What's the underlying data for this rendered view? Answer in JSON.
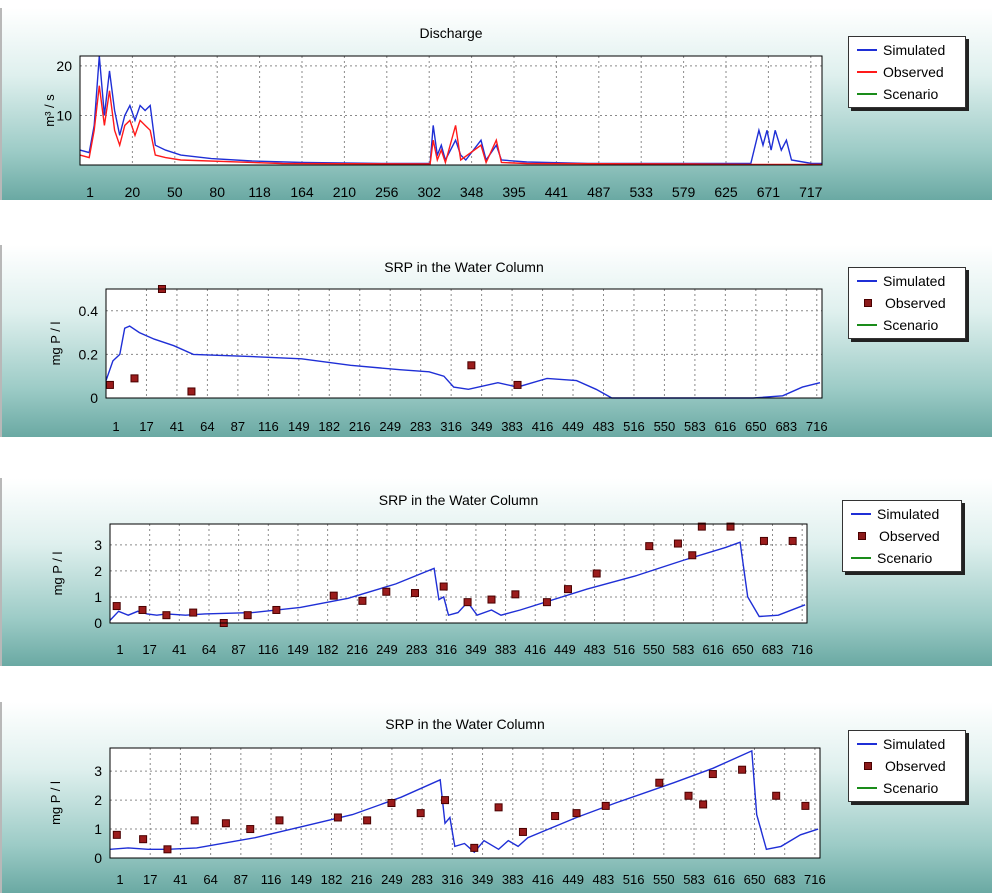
{
  "colors": {
    "simulated": "#1f2fd6",
    "observed_line": "#ff1a1a",
    "observed_marker": "#9b1c1c",
    "scenario": "#1a8c1a",
    "grid": "#8a8a8a"
  },
  "legend_labels": [
    "Simulated",
    "Observed",
    "Scenario"
  ],
  "chart_data": [
    {
      "type": "line",
      "title": "Discharge",
      "ylabel": "m³ / s",
      "xlabel": "",
      "ylim": [
        0,
        22
      ],
      "xlim": [
        1,
        730
      ],
      "yticks": [
        10,
        20
      ],
      "xtick_labels": [
        "1",
        "20",
        "50",
        "80",
        "118",
        "164",
        "210",
        "256",
        "302",
        "348",
        "395",
        "441",
        "487",
        "533",
        "579",
        "625",
        "671",
        "717"
      ],
      "legend": "right",
      "grid": true,
      "observed_style": "line",
      "series": [
        {
          "name": "Simulated",
          "points": [
            [
              1,
              3
            ],
            [
              10,
              2.5
            ],
            [
              15,
              8
            ],
            [
              20,
              22
            ],
            [
              25,
              10
            ],
            [
              30,
              19
            ],
            [
              35,
              11
            ],
            [
              40,
              6
            ],
            [
              45,
              10
            ],
            [
              50,
              12
            ],
            [
              55,
              9
            ],
            [
              60,
              12
            ],
            [
              65,
              11
            ],
            [
              70,
              12
            ],
            [
              75,
              4
            ],
            [
              85,
              3
            ],
            [
              100,
              2
            ],
            [
              130,
              1.3
            ],
            [
              170,
              0.8
            ],
            [
              220,
              0.5
            ],
            [
              300,
              0.3
            ],
            [
              345,
              0.3
            ],
            [
              348,
              8
            ],
            [
              352,
              2
            ],
            [
              356,
              4
            ],
            [
              360,
              1
            ],
            [
              370,
              5
            ],
            [
              375,
              2
            ],
            [
              380,
              1
            ],
            [
              395,
              5
            ],
            [
              400,
              1
            ],
            [
              410,
              4
            ],
            [
              415,
              1
            ],
            [
              440,
              0.6
            ],
            [
              500,
              0.3
            ],
            [
              660,
              0.3
            ],
            [
              668,
              7
            ],
            [
              672,
              4
            ],
            [
              676,
              7
            ],
            [
              680,
              3
            ],
            [
              684,
              7
            ],
            [
              690,
              3
            ],
            [
              695,
              5
            ],
            [
              700,
              1
            ],
            [
              720,
              0.3
            ],
            [
              730,
              0.3
            ]
          ]
        },
        {
          "name": "Observed",
          "points": [
            [
              1,
              2
            ],
            [
              10,
              1.5
            ],
            [
              15,
              7
            ],
            [
              20,
              16
            ],
            [
              25,
              8
            ],
            [
              30,
              15
            ],
            [
              35,
              7
            ],
            [
              40,
              4
            ],
            [
              45,
              8
            ],
            [
              50,
              9
            ],
            [
              55,
              6
            ],
            [
              60,
              9
            ],
            [
              65,
              8
            ],
            [
              70,
              7
            ],
            [
              75,
              2
            ],
            [
              85,
              1.5
            ],
            [
              100,
              1
            ],
            [
              200,
              0.3
            ],
            [
              345,
              0.2
            ],
            [
              348,
              5
            ],
            [
              352,
              1
            ],
            [
              356,
              3
            ],
            [
              360,
              0.5
            ],
            [
              370,
              8
            ],
            [
              375,
              1
            ],
            [
              395,
              4
            ],
            [
              400,
              0.5
            ],
            [
              410,
              5
            ],
            [
              415,
              0.5
            ],
            [
              440,
              0.3
            ],
            [
              600,
              0.2
            ],
            [
              660,
              0.1
            ],
            [
              730,
              0.1
            ]
          ]
        },
        {
          "name": "Scenario",
          "points": []
        }
      ]
    },
    {
      "type": "line",
      "title": "SRP in the Water Column",
      "ylabel": "mg P / l",
      "xlabel": "",
      "ylim": [
        0,
        0.5
      ],
      "xlim": [
        1,
        730
      ],
      "yticks": [
        0,
        0.2,
        0.4
      ],
      "xtick_labels": [
        "1",
        "17",
        "41",
        "64",
        "87",
        "116",
        "149",
        "182",
        "216",
        "249",
        "283",
        "316",
        "349",
        "383",
        "416",
        "449",
        "483",
        "516",
        "550",
        "583",
        "616",
        "650",
        "683",
        "716"
      ],
      "legend": "right",
      "grid": true,
      "observed_style": "markers",
      "series": [
        {
          "name": "Simulated",
          "points": [
            [
              1,
              0.08
            ],
            [
              8,
              0.17
            ],
            [
              15,
              0.2
            ],
            [
              20,
              0.32
            ],
            [
              25,
              0.33
            ],
            [
              35,
              0.3
            ],
            [
              50,
              0.27
            ],
            [
              70,
              0.24
            ],
            [
              90,
              0.2
            ],
            [
              150,
              0.19
            ],
            [
              200,
              0.18
            ],
            [
              250,
              0.15
            ],
            [
              300,
              0.13
            ],
            [
              330,
              0.12
            ],
            [
              345,
              0.1
            ],
            [
              355,
              0.05
            ],
            [
              370,
              0.04
            ],
            [
              400,
              0.07
            ],
            [
              420,
              0.05
            ],
            [
              450,
              0.09
            ],
            [
              480,
              0.08
            ],
            [
              500,
              0.04
            ],
            [
              516,
              0
            ],
            [
              660,
              0
            ],
            [
              690,
              0.01
            ],
            [
              710,
              0.05
            ],
            [
              728,
              0.07
            ]
          ]
        },
        {
          "name": "Observed",
          "points": [
            [
              5,
              0.06
            ],
            [
              30,
              0.09
            ],
            [
              58,
              0.5
            ],
            [
              88,
              0.03
            ],
            [
              373,
              0.15
            ],
            [
              420,
              0.06
            ]
          ]
        },
        {
          "name": "Scenario",
          "points": []
        }
      ]
    },
    {
      "type": "line",
      "title": "SRP in the Water Column",
      "ylabel": "mg P / l",
      "xlabel": "",
      "ylim": [
        0,
        3.8
      ],
      "xlim": [
        1,
        730
      ],
      "yticks": [
        0,
        1,
        2,
        3
      ],
      "xtick_labels": [
        "1",
        "17",
        "41",
        "64",
        "87",
        "116",
        "149",
        "182",
        "216",
        "249",
        "283",
        "316",
        "349",
        "383",
        "416",
        "449",
        "483",
        "516",
        "550",
        "583",
        "616",
        "650",
        "683",
        "716"
      ],
      "legend": "right",
      "grid": true,
      "observed_style": "markers",
      "series": [
        {
          "name": "Simulated",
          "points": [
            [
              1,
              0.1
            ],
            [
              10,
              0.45
            ],
            [
              20,
              0.3
            ],
            [
              30,
              0.45
            ],
            [
              40,
              0.35
            ],
            [
              50,
              0.3
            ],
            [
              60,
              0.35
            ],
            [
              80,
              0.3
            ],
            [
              100,
              0.35
            ],
            [
              150,
              0.4
            ],
            [
              200,
              0.6
            ],
            [
              250,
              0.95
            ],
            [
              300,
              1.5
            ],
            [
              340,
              2.1
            ],
            [
              345,
              0.9
            ],
            [
              350,
              1.0
            ],
            [
              355,
              0.3
            ],
            [
              365,
              0.4
            ],
            [
              375,
              0.8
            ],
            [
              385,
              0.3
            ],
            [
              400,
              0.5
            ],
            [
              410,
              0.3
            ],
            [
              420,
              0.4
            ],
            [
              430,
              0.5
            ],
            [
              500,
              1.3
            ],
            [
              550,
              1.8
            ],
            [
              600,
              2.4
            ],
            [
              645,
              2.9
            ],
            [
              660,
              3.1
            ],
            [
              668,
              1.0
            ],
            [
              680,
              0.25
            ],
            [
              700,
              0.3
            ],
            [
              728,
              0.7
            ]
          ]
        },
        {
          "name": "Observed",
          "points": [
            [
              8,
              0.65
            ],
            [
              35,
              0.5
            ],
            [
              60,
              0.3
            ],
            [
              88,
              0.4
            ],
            [
              120,
              0.0
            ],
            [
              145,
              0.3
            ],
            [
              175,
              0.5
            ],
            [
              235,
              1.05
            ],
            [
              265,
              0.85
            ],
            [
              290,
              1.2
            ],
            [
              320,
              1.15
            ],
            [
              350,
              1.4
            ],
            [
              375,
              0.8
            ],
            [
              400,
              0.9
            ],
            [
              425,
              1.1
            ],
            [
              458,
              0.8
            ],
            [
              480,
              1.3
            ],
            [
              510,
              1.9
            ],
            [
              565,
              2.95
            ],
            [
              595,
              3.05
            ],
            [
              610,
              2.6
            ],
            [
              620,
              3.7
            ],
            [
              650,
              3.7
            ],
            [
              685,
              3.15
            ],
            [
              715,
              3.15
            ]
          ]
        },
        {
          "name": "Scenario",
          "points": []
        }
      ]
    },
    {
      "type": "line",
      "title": "SRP in the Water Column",
      "ylabel": "mg P / l",
      "xlabel": "",
      "ylim": [
        0,
        3.8
      ],
      "xlim": [
        1,
        730
      ],
      "yticks": [
        0,
        1,
        2,
        3
      ],
      "xtick_labels": [
        "1",
        "17",
        "41",
        "64",
        "87",
        "116",
        "149",
        "182",
        "216",
        "249",
        "283",
        "316",
        "349",
        "383",
        "416",
        "449",
        "483",
        "516",
        "550",
        "583",
        "616",
        "650",
        "683",
        "716"
      ],
      "legend": "right",
      "grid": true,
      "observed_style": "markers",
      "series": [
        {
          "name": "Simulated",
          "points": [
            [
              1,
              0.3
            ],
            [
              20,
              0.35
            ],
            [
              40,
              0.3
            ],
            [
              60,
              0.3
            ],
            [
              90,
              0.35
            ],
            [
              150,
              0.7
            ],
            [
              200,
              1.1
            ],
            [
              250,
              1.5
            ],
            [
              300,
              2.1
            ],
            [
              340,
              2.7
            ],
            [
              345,
              1.2
            ],
            [
              350,
              1.4
            ],
            [
              355,
              0.4
            ],
            [
              365,
              0.5
            ],
            [
              375,
              0.2
            ],
            [
              385,
              0.6
            ],
            [
              400,
              0.3
            ],
            [
              410,
              0.6
            ],
            [
              420,
              0.4
            ],
            [
              430,
              0.7
            ],
            [
              480,
              1.4
            ],
            [
              520,
              1.9
            ],
            [
              580,
              2.6
            ],
            [
              620,
              3.1
            ],
            [
              660,
              3.7
            ],
            [
              665,
              1.5
            ],
            [
              675,
              0.3
            ],
            [
              690,
              0.4
            ],
            [
              710,
              0.8
            ],
            [
              728,
              1.0
            ]
          ]
        },
        {
          "name": "Observed",
          "points": [
            [
              8,
              0.8
            ],
            [
              35,
              0.65
            ],
            [
              60,
              0.3
            ],
            [
              88,
              1.3
            ],
            [
              120,
              1.2
            ],
            [
              145,
              1.0
            ],
            [
              175,
              1.3
            ],
            [
              235,
              1.4
            ],
            [
              265,
              1.3
            ],
            [
              290,
              1.9
            ],
            [
              320,
              1.55
            ],
            [
              345,
              2.0
            ],
            [
              375,
              0.35
            ],
            [
              400,
              1.75
            ],
            [
              425,
              0.9
            ],
            [
              458,
              1.45
            ],
            [
              480,
              1.55
            ],
            [
              510,
              1.8
            ],
            [
              565,
              2.6
            ],
            [
              595,
              2.15
            ],
            [
              610,
              1.85
            ],
            [
              620,
              2.9
            ],
            [
              650,
              3.05
            ],
            [
              685,
              2.15
            ],
            [
              715,
              1.8
            ]
          ]
        },
        {
          "name": "Scenario",
          "points": []
        }
      ]
    }
  ]
}
